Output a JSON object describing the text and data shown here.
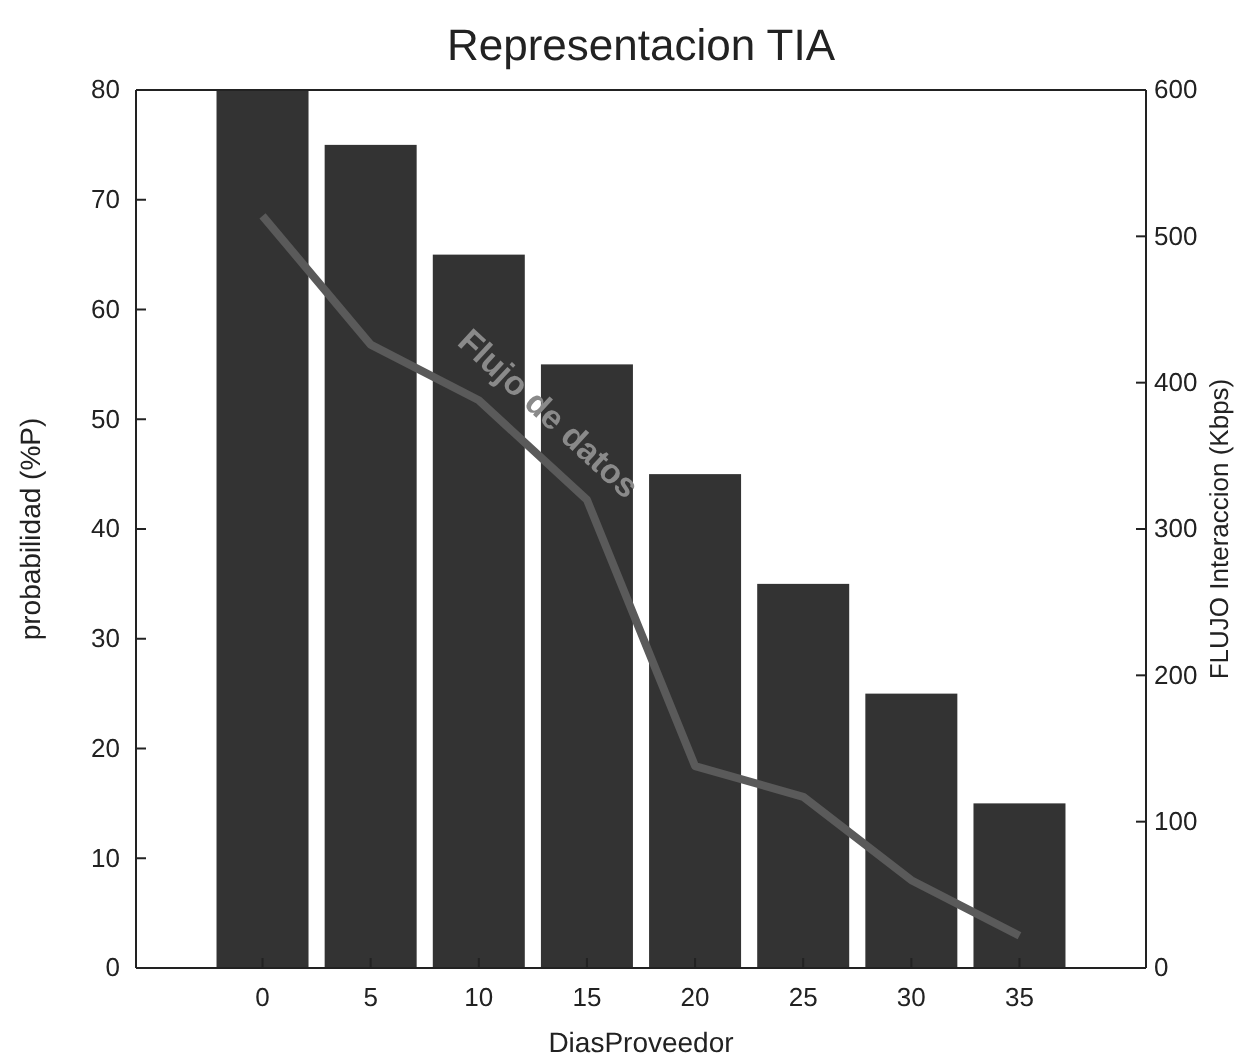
{
  "chart_data": {
    "type": "bar",
    "title": "Representacion TIA",
    "xlabel": "DiasProveedor",
    "ylabel": "probabilidad (%P)",
    "y2label": "FLUJO Interaccion (Kbps)",
    "categories": [
      "0",
      "5",
      "10",
      "15",
      "20",
      "25",
      "30",
      "35"
    ],
    "series": [
      {
        "color": "#333333",
        "values": [
          80,
          75,
          65,
          55,
          45,
          35,
          25,
          15
        ]
      },
      {
        "type": "line",
        "axis": "y2",
        "name": "Flujo de datos",
        "color": "#5a5a5a",
        "values": [
          514,
          426,
          388,
          320,
          138,
          117,
          60,
          22
        ]
      }
    ],
    "ylim": [
      0,
      80
    ],
    "yticks": [
      0,
      10,
      20,
      30,
      40,
      50,
      60,
      70,
      80
    ],
    "y2lim": [
      0,
      600
    ],
    "y2ticks": [
      0,
      100,
      200,
      300,
      400,
      500,
      600
    ],
    "grid": false,
    "marker": "none",
    "line_style": "solid"
  }
}
